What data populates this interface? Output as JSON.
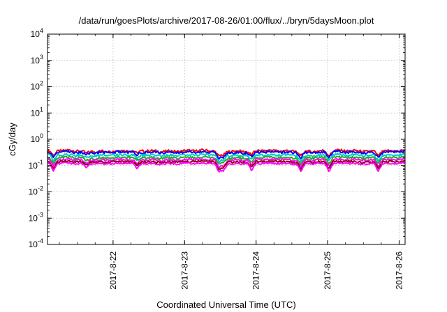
{
  "chart_data": {
    "type": "line",
    "title": "/data/run/goesPlots/archive/2017-08-26/01:00/flux/../bryn/5daysMoon.plot",
    "xlabel": "Coordinated Universal Time (UTC)",
    "ylabel": "cGy/day",
    "yscale": "log",
    "ylim": [
      0.0001,
      10000
    ],
    "y_ticks": [
      {
        "base": "10",
        "exp": "-4",
        "value": 0.0001
      },
      {
        "base": "10",
        "exp": "-3",
        "value": 0.001
      },
      {
        "base": "10",
        "exp": "-2",
        "value": 0.01
      },
      {
        "base": "10",
        "exp": "-1",
        "value": 0.1
      },
      {
        "base": "10",
        "exp": "0",
        "value": 1
      },
      {
        "base": "10",
        "exp": "1",
        "value": 10
      },
      {
        "base": "10",
        "exp": "2",
        "value": 100
      },
      {
        "base": "10",
        "exp": "3",
        "value": 1000
      },
      {
        "base": "10",
        "exp": "4",
        "value": 10000
      }
    ],
    "xlim": [
      "2017-08-21T02:00",
      "2017-08-26T02:00"
    ],
    "x_ticks": [
      {
        "label": "2017-8-22",
        "value": "2017-08-22T00:00"
      },
      {
        "label": "2017-8-23",
        "value": "2017-08-23T00:00"
      },
      {
        "label": "2017-8-24",
        "value": "2017-08-24T00:00"
      },
      {
        "label": "2017-8-25",
        "value": "2017-08-25T00:00"
      },
      {
        "label": "2017-8-26",
        "value": "2017-08-26T00:00"
      }
    ],
    "grid": true,
    "series": [
      {
        "color": "#ff0000",
        "baseline": 0.36
      },
      {
        "color": "#0000ff",
        "baseline": 0.32
      },
      {
        "color": "#00c8c8",
        "baseline": 0.25
      },
      {
        "color": "#22aa22",
        "baseline": 0.2
      },
      {
        "color": "#ff00ff",
        "baseline": 0.165
      },
      {
        "color": "#880000",
        "baseline": 0.14
      },
      {
        "color": "#ff00ff",
        "baseline": 0.12
      }
    ],
    "dips": [
      {
        "x": "2017-08-21T04:00",
        "factor": 0.55
      },
      {
        "x": "2017-08-21T15:00",
        "factor": 0.75
      },
      {
        "x": "2017-08-22T08:00",
        "factor": 0.7
      },
      {
        "x": "2017-08-23T11:30",
        "factor": 0.5
      },
      {
        "x": "2017-08-23T13:00",
        "factor": 0.6
      },
      {
        "x": "2017-08-23T22:30",
        "factor": 0.6
      },
      {
        "x": "2017-08-24T15:00",
        "factor": 0.55
      },
      {
        "x": "2017-08-25T00:30",
        "factor": 0.55
      },
      {
        "x": "2017-08-25T17:00",
        "factor": 0.6
      }
    ]
  }
}
